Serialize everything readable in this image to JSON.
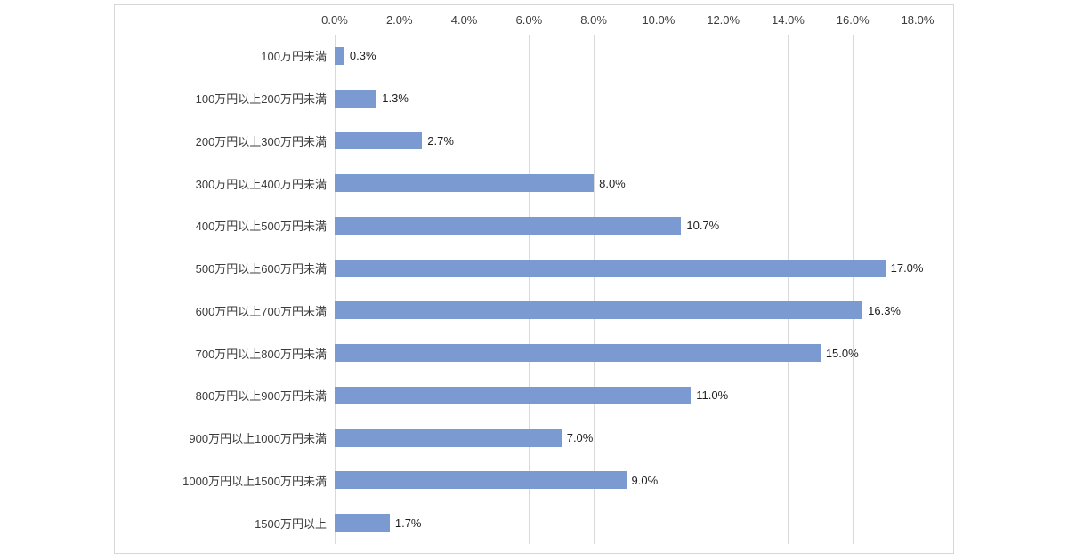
{
  "chart_data": {
    "type": "bar",
    "orientation": "horizontal",
    "title": "",
    "xlabel": "",
    "ylabel": "",
    "categories": [
      "100万円未満",
      "100万円以上200万円未満",
      "200万円以上300万円未満",
      "300万円以上400万円未満",
      "400万円以上500万円未満",
      "500万円以上600万円未満",
      "600万円以上700万円未満",
      "700万円以上800万円未満",
      "800万円以上900万円未満",
      "900万円以上1000万円未満",
      "1000万円以上1500万円未満",
      "1500万円以上"
    ],
    "values": [
      0.3,
      1.3,
      2.7,
      8.0,
      10.7,
      17.0,
      16.3,
      15.0,
      11.0,
      7.0,
      9.0,
      1.7
    ],
    "value_labels": [
      "0.3%",
      "1.3%",
      "2.7%",
      "8.0%",
      "10.7%",
      "17.0%",
      "16.3%",
      "15.0%",
      "11.0%",
      "7.0%",
      "9.0%",
      "1.7%"
    ],
    "x_ticks": [
      "0.0%",
      "2.0%",
      "4.0%",
      "6.0%",
      "8.0%",
      "10.0%",
      "12.0%",
      "14.0%",
      "16.0%",
      "18.0%"
    ],
    "xlim": [
      0,
      18
    ],
    "grid": "vertical",
    "legend": "none",
    "bar_color": "#7c9ad2",
    "gridline_color": "#d9d9d9",
    "frame_border_color": "#d7d7d7",
    "text_color": "#3c3c3c"
  }
}
